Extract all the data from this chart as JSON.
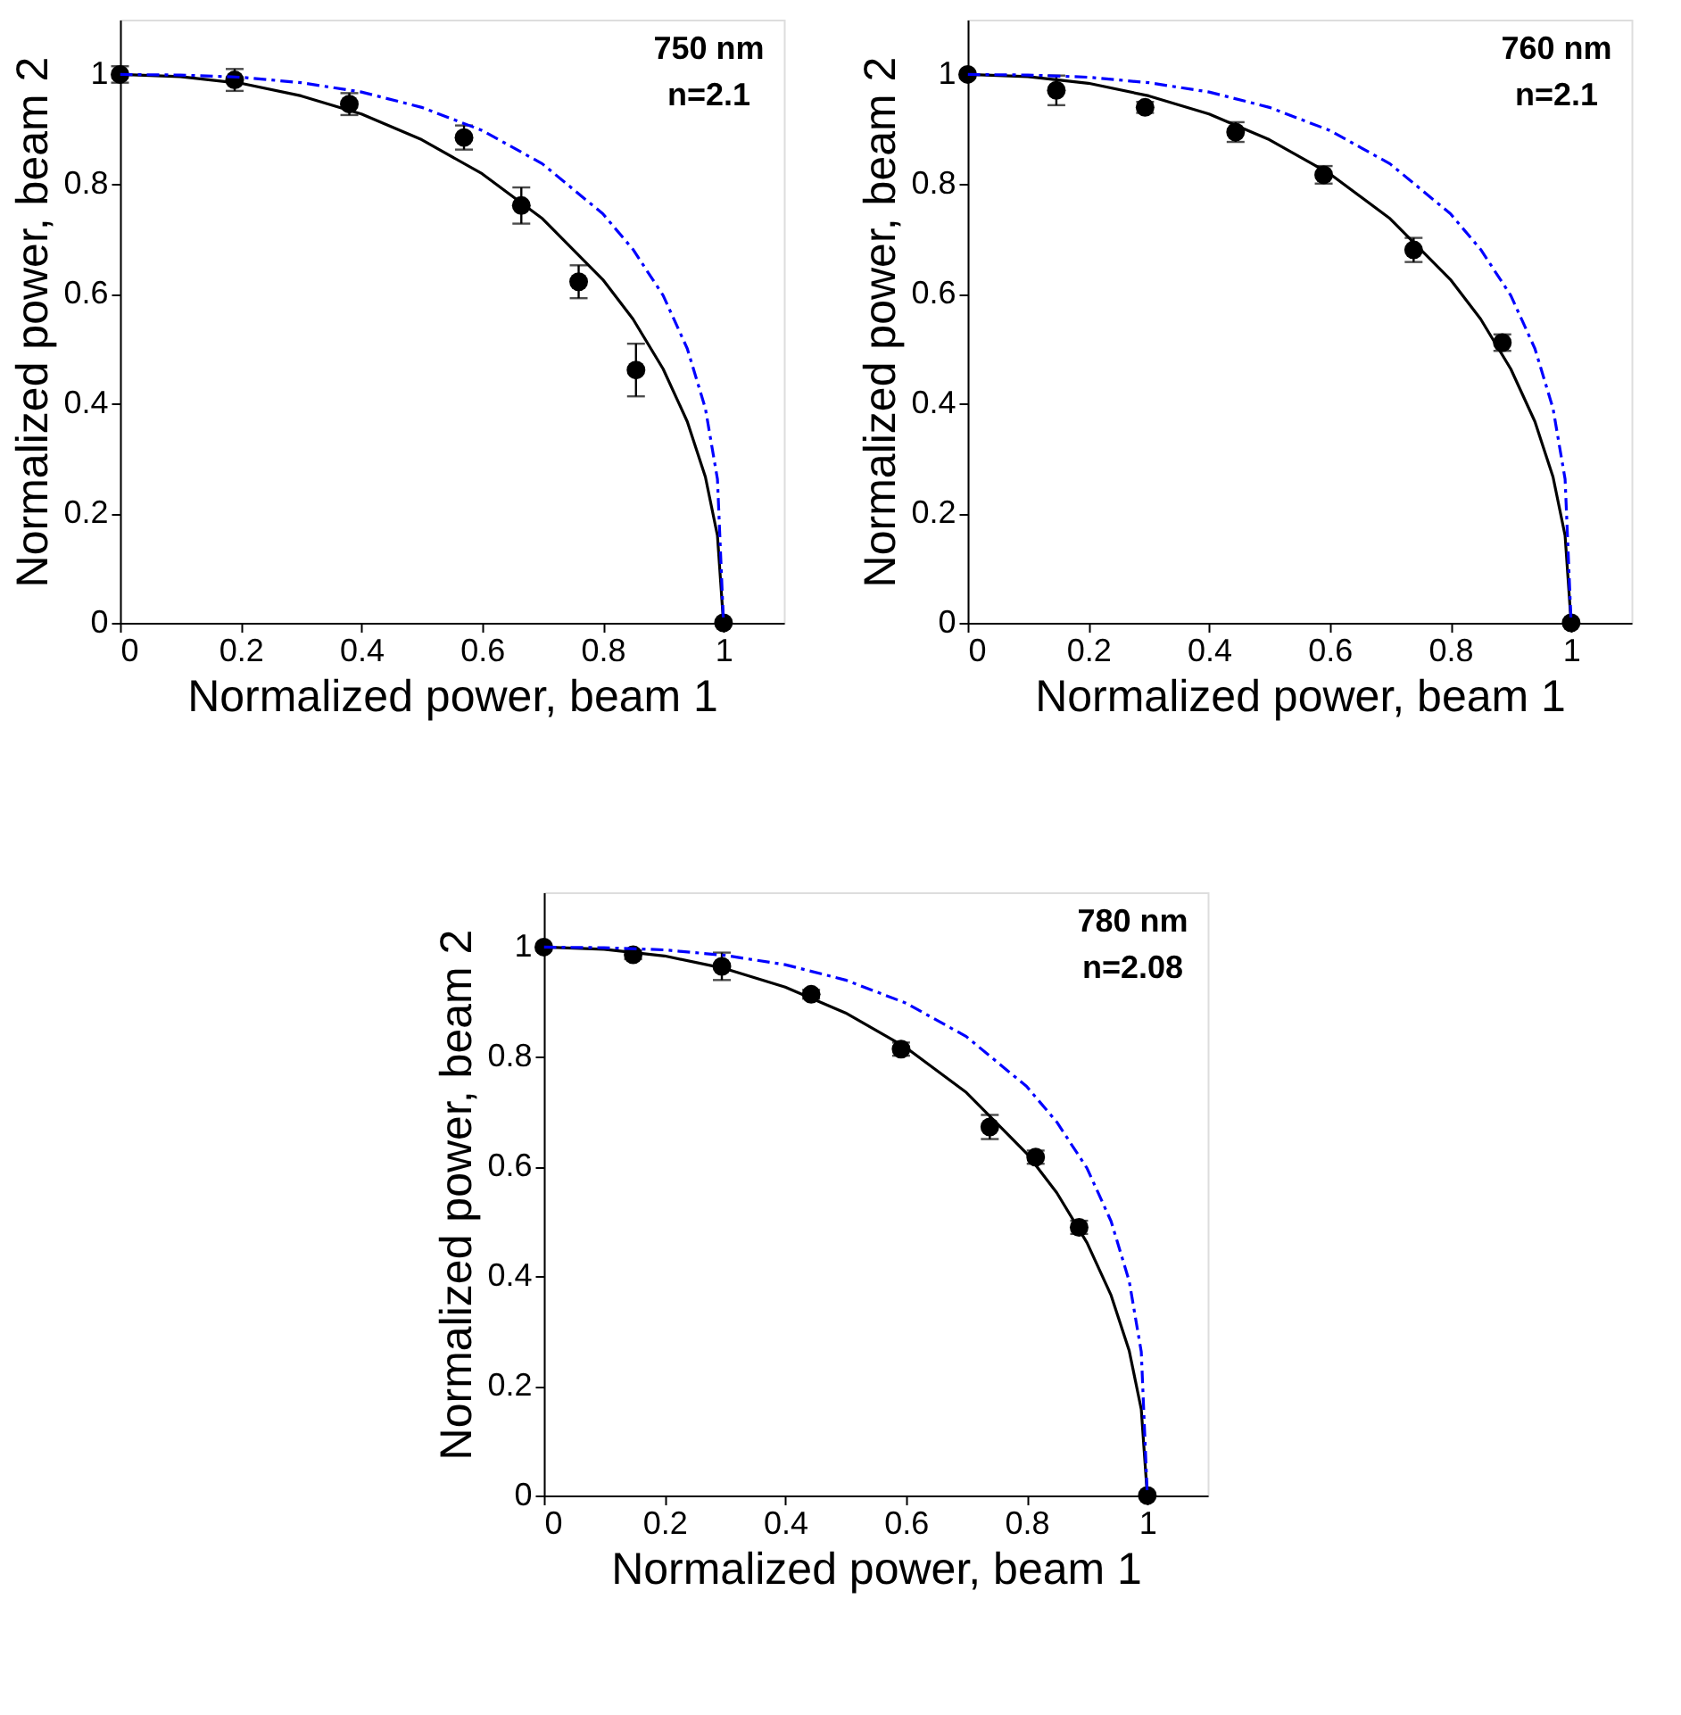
{
  "chart_data": [
    {
      "type": "scatter",
      "xlabel": "Normalized power, beam 1",
      "ylabel": "Normalized power, beam 2",
      "xlim": [
        0,
        1.1
      ],
      "ylim": [
        0,
        1.1
      ],
      "xticks": [
        0,
        0.2,
        0.4,
        0.6,
        0.8,
        1
      ],
      "yticks": [
        0,
        0.2,
        0.4,
        0.6,
        0.8,
        1
      ],
      "grid": false,
      "annotations": [
        "750 nm",
        "n=2.1"
      ],
      "series": [
        {
          "color": "#000000",
          "marker": "circle",
          "x": [
            0,
            0.19,
            0.38,
            0.57,
            0.665,
            0.76,
            0.855,
            1
          ],
          "values": [
            1.0,
            0.99,
            0.946,
            0.885,
            0.761,
            0.622,
            0.461,
            0
          ],
          "errors": [
            0.015,
            0.02,
            0.02,
            0.022,
            0.033,
            0.03,
            0.048,
            null
          ]
        },
        {
          "type": "line",
          "color": "#000000",
          "line_style": "solid",
          "x": [
            0,
            0.1,
            0.2,
            0.3,
            0.4,
            0.5,
            0.6,
            0.7,
            0.8,
            0.85,
            0.9,
            0.94,
            0.97,
            0.99,
            1
          ],
          "values": [
            1,
            0.996,
            0.984,
            0.961,
            0.928,
            0.881,
            0.819,
            0.737,
            0.626,
            0.554,
            0.463,
            0.367,
            0.266,
            0.159,
            0
          ]
        },
        {
          "type": "line",
          "color": "#0000ff",
          "line_style": "dashed",
          "x": [
            0,
            0.1,
            0.2,
            0.3,
            0.4,
            0.5,
            0.6,
            0.7,
            0.8,
            0.85,
            0.9,
            0.94,
            0.97,
            0.99,
            1
          ],
          "values": [
            1,
            0.999,
            0.995,
            0.985,
            0.968,
            0.94,
            0.898,
            0.837,
            0.746,
            0.681,
            0.597,
            0.5,
            0.391,
            0.262,
            0
          ]
        }
      ]
    },
    {
      "type": "scatter",
      "xlabel": "Normalized power, beam 1",
      "ylabel": "Normalized power, beam 2",
      "xlim": [
        0,
        1.1
      ],
      "ylim": [
        0,
        1.1
      ],
      "xticks": [
        0,
        0.2,
        0.4,
        0.6,
        0.8,
        1
      ],
      "yticks": [
        0,
        0.2,
        0.4,
        0.6,
        0.8,
        1
      ],
      "grid": false,
      "annotations": [
        "760 nm",
        "n=2.1"
      ],
      "series": [
        {
          "color": "#000000",
          "marker": "circle",
          "x": [
            0,
            0.147,
            0.294,
            0.444,
            0.59,
            0.739,
            0.886,
            1
          ],
          "values": [
            1.0,
            0.971,
            0.94,
            0.895,
            0.817,
            0.68,
            0.511,
            0
          ],
          "errors": [
            null,
            0.027,
            0.01,
            0.018,
            0.016,
            0.022,
            0.015,
            null
          ]
        },
        {
          "type": "line",
          "color": "#000000",
          "line_style": "solid",
          "x": [
            0,
            0.1,
            0.2,
            0.3,
            0.4,
            0.5,
            0.6,
            0.7,
            0.8,
            0.85,
            0.9,
            0.94,
            0.97,
            0.99,
            1
          ],
          "values": [
            1,
            0.996,
            0.984,
            0.961,
            0.928,
            0.881,
            0.819,
            0.737,
            0.626,
            0.554,
            0.463,
            0.367,
            0.266,
            0.159,
            0
          ]
        },
        {
          "type": "line",
          "color": "#0000ff",
          "line_style": "dashed",
          "x": [
            0,
            0.1,
            0.2,
            0.3,
            0.4,
            0.5,
            0.6,
            0.7,
            0.8,
            0.85,
            0.9,
            0.94,
            0.97,
            0.99,
            1
          ],
          "values": [
            1,
            0.999,
            0.995,
            0.985,
            0.968,
            0.94,
            0.898,
            0.837,
            0.746,
            0.681,
            0.597,
            0.5,
            0.391,
            0.262,
            0
          ]
        }
      ]
    },
    {
      "type": "scatter",
      "xlabel": "Normalized power, beam 1",
      "ylabel": "Normalized power, beam 2",
      "xlim": [
        0,
        1.1
      ],
      "ylim": [
        0,
        1.1
      ],
      "xticks": [
        0,
        0.2,
        0.4,
        0.6,
        0.8,
        1
      ],
      "yticks": [
        0,
        0.2,
        0.4,
        0.6,
        0.8,
        1
      ],
      "grid": false,
      "annotations": [
        "780 nm",
        "n=2.08"
      ],
      "series": [
        {
          "color": "#000000",
          "marker": "circle",
          "x": [
            0,
            0.148,
            0.295,
            0.443,
            0.592,
            0.739,
            0.815,
            0.887,
            1
          ],
          "values": [
            1.0,
            0.986,
            0.965,
            0.914,
            0.814,
            0.672,
            0.617,
            0.489,
            0
          ],
          "errors": [
            null,
            0.008,
            0.025,
            0.008,
            0.012,
            0.022,
            0.012,
            0.012,
            null
          ]
        },
        {
          "type": "line",
          "color": "#000000",
          "line_style": "solid",
          "x": [
            0,
            0.1,
            0.2,
            0.3,
            0.4,
            0.5,
            0.6,
            0.7,
            0.8,
            0.85,
            0.9,
            0.94,
            0.97,
            0.99,
            1
          ],
          "values": [
            1,
            0.996,
            0.984,
            0.961,
            0.927,
            0.88,
            0.817,
            0.735,
            0.624,
            0.552,
            0.461,
            0.365,
            0.264,
            0.157,
            0
          ]
        },
        {
          "type": "line",
          "color": "#0000ff",
          "line_style": "dashed",
          "x": [
            0,
            0.1,
            0.2,
            0.3,
            0.4,
            0.5,
            0.6,
            0.7,
            0.8,
            0.85,
            0.9,
            0.94,
            0.97,
            0.99,
            1
          ],
          "values": [
            1,
            0.999,
            0.995,
            0.985,
            0.968,
            0.94,
            0.898,
            0.837,
            0.746,
            0.681,
            0.597,
            0.5,
            0.391,
            0.262,
            0
          ]
        }
      ]
    }
  ]
}
